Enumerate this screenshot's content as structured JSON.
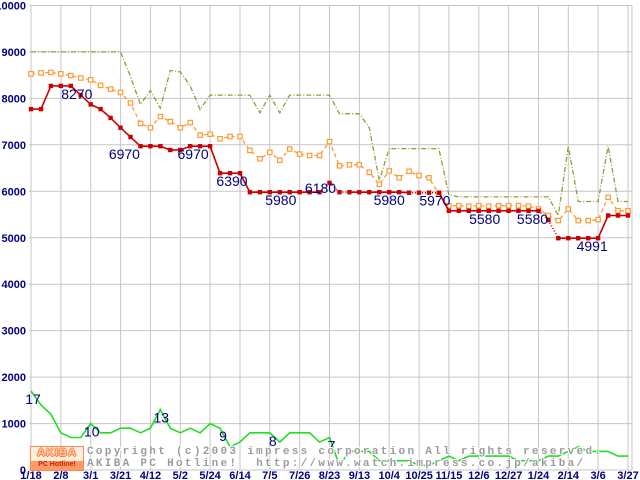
{
  "y_axis": {
    "labels": [
      "10000",
      "9000",
      "8000",
      "7000",
      "6000",
      "5000",
      "4000",
      "3000",
      "2000",
      "1000",
      "0"
    ],
    "min": 0,
    "max": 10000,
    "step": 1000
  },
  "x_axis": {
    "ticks": [
      "1/18",
      "2/8",
      "3/1",
      "3/21",
      "4/12",
      "5/2",
      "5/24",
      "6/14",
      "7/5",
      "7/26",
      "8/23",
      "9/13",
      "10/4",
      "10/25",
      "11/15",
      "12/6",
      "12/27",
      "1/24",
      "2/14",
      "3/6",
      "3/27"
    ]
  },
  "chart_data": {
    "type": "line",
    "grid": true,
    "legend": "none",
    "ylim": [
      0,
      10000
    ],
    "points_per_tick": 3,
    "series": [
      {
        "name": "highest_price",
        "color": "#999933",
        "style": "dash-dot",
        "marker": "none",
        "values": [
          9000,
          9000,
          9000,
          9000,
          9000,
          9000,
          9000,
          9000,
          9000,
          9000,
          8470,
          7870,
          8170,
          7790,
          8600,
          8570,
          8270,
          7760,
          8070,
          8070,
          8070,
          8070,
          8070,
          7690,
          8070,
          7690,
          8070,
          8070,
          8070,
          8070,
          8070,
          7670,
          7670,
          7670,
          7370,
          6240,
          6920,
          6920,
          6920,
          6920,
          6920,
          6920,
          5920,
          5880,
          5880,
          5880,
          5880,
          5880,
          5880,
          5880,
          5880,
          5880,
          5880,
          5480,
          6970,
          5780,
          5780,
          5780,
          6970,
          5780,
          5780
        ]
      },
      {
        "name": "average_price",
        "color": "#ff9933",
        "style": "dashed",
        "marker": "open-square",
        "values": [
          8530,
          8550,
          8560,
          8530,
          8490,
          8440,
          8400,
          8280,
          8200,
          8130,
          7900,
          7460,
          7370,
          7610,
          7500,
          7370,
          7480,
          7210,
          7230,
          7130,
          7180,
          7180,
          6880,
          6700,
          6840,
          6670,
          6910,
          6800,
          6770,
          6770,
          7070,
          6550,
          6570,
          6570,
          6410,
          6150,
          6440,
          6290,
          6430,
          6340,
          6290,
          5940,
          5690,
          5690,
          5680,
          5690,
          5680,
          5690,
          5690,
          5690,
          5680,
          5620,
          5480,
          5370,
          5620,
          5370,
          5370,
          5390,
          5870,
          5580,
          5580
        ]
      },
      {
        "name": "lowest_price",
        "color": "#cc0000",
        "style": "solid",
        "marker": "filled-square",
        "values": [
          7770,
          7770,
          8270,
          8270,
          8270,
          8070,
          7870,
          7770,
          7580,
          7370,
          7170,
          6970,
          6970,
          6970,
          6890,
          6890,
          6970,
          6970,
          6970,
          6390,
          6390,
          6390,
          5980,
          5980,
          5980,
          5980,
          5980,
          5980,
          5980,
          5980,
          6180,
          5980,
          5980,
          5980,
          5980,
          5980,
          5980,
          5980,
          5970,
          5970,
          5970,
          5970,
          5580,
          5580,
          5580,
          5580,
          5580,
          5580,
          5580,
          5580,
          5580,
          5580,
          5380,
          4991,
          4991,
          4991,
          4991,
          4991,
          5480,
          5480,
          5480
        ]
      },
      {
        "name": "shop_count",
        "color": "#22dd22",
        "style": "solid",
        "marker": "none",
        "value_scale": 100,
        "values": [
          17,
          14,
          12,
          8,
          7,
          7,
          10,
          8,
          8,
          9,
          9,
          8,
          9,
          13,
          9,
          8,
          9,
          8,
          10,
          9,
          5,
          6,
          8,
          8,
          8,
          6,
          8,
          8,
          8,
          6,
          7,
          1,
          4,
          4,
          4,
          2,
          2,
          2,
          2,
          1,
          1,
          2,
          3,
          2,
          3,
          3,
          3,
          3,
          3,
          2,
          2,
          2,
          3,
          3,
          4,
          5,
          4,
          4,
          4,
          3,
          3
        ]
      }
    ],
    "annotations": {
      "price_labels": [
        {
          "i": 4,
          "text": "8270",
          "dx": 6
        },
        {
          "i": 11,
          "text": "6970",
          "dx": -16
        },
        {
          "i": 17,
          "text": "6970",
          "dx": -7
        },
        {
          "i": 20,
          "text": "6390",
          "dx": 2
        },
        {
          "i": 25,
          "text": "5980",
          "dx": 1
        },
        {
          "i": 30,
          "text": "6180",
          "dx": -9,
          "dy": 10
        },
        {
          "i": 36,
          "text": "5980",
          "dx": 0
        },
        {
          "i": 41,
          "text": "5970",
          "dx": -4
        },
        {
          "i": 46,
          "text": "5580",
          "dx": -4
        },
        {
          "i": 51,
          "text": "5580",
          "dx": -6
        },
        {
          "i": 56,
          "text": "4991",
          "dx": 4
        }
      ],
      "count_labels": [
        {
          "i": 0,
          "text": "17",
          "dx": 2
        },
        {
          "i": 6,
          "text": "10",
          "dx": 1
        },
        {
          "i": 13,
          "text": "13",
          "dx": 1
        },
        {
          "i": 19,
          "text": "9",
          "dx": 3
        },
        {
          "i": 24,
          "text": "8",
          "dx": 3
        },
        {
          "i": 30,
          "text": "7",
          "dx": 2
        }
      ]
    }
  },
  "footer": {
    "logo_top": "AKIBA",
    "logo_bottom": "PC Hotline!",
    "copyright_line1": "Copyright (c)2003 impress corporation All rights reserved.",
    "copyright_line2": "AKIBA PC Hotline!  http://www.watch.impress.co.jp/akiba/"
  }
}
